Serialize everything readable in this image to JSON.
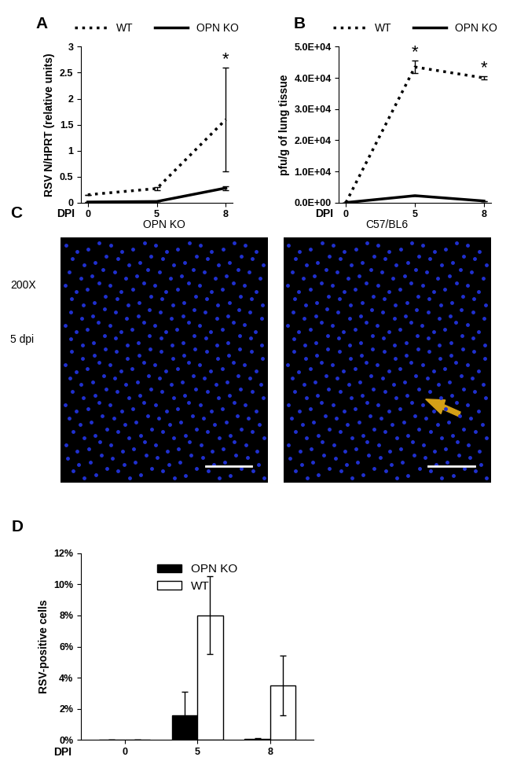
{
  "chart_data": [
    {
      "type": "line",
      "title": "A",
      "x_label": "DPI",
      "y_label": "RSV N/HPRT (relative units)",
      "categories": [
        "0",
        "5",
        "8"
      ],
      "series": [
        {
          "name": "WT",
          "color": "#000000",
          "line_style": "dotted",
          "values": [
            0.15,
            0.27,
            1.6
          ],
          "errors": [
            0.0,
            0.03,
            1.0
          ]
        },
        {
          "name": "OPN KO",
          "color": "#000000",
          "line_style": "solid",
          "values": [
            0.01,
            0.02,
            0.28
          ],
          "errors": [
            0.0,
            0.0,
            0.04
          ]
        }
      ],
      "ylim": [
        0,
        3
      ],
      "yticks": [
        0,
        0.5,
        1,
        1.5,
        2,
        2.5,
        3
      ],
      "legend": "top",
      "annotations": [
        {
          "text": "*",
          "series": "WT",
          "category": "8"
        }
      ]
    },
    {
      "type": "line",
      "title": "B",
      "x_label": "DPI",
      "y_label": "pfu/g of lung tissue",
      "categories": [
        "0",
        "5",
        "8"
      ],
      "series": [
        {
          "name": "WT",
          "color": "#000000",
          "line_style": "dotted",
          "values": [
            0,
            43500,
            40000
          ],
          "errors": [
            0,
            2000,
            500
          ]
        },
        {
          "name": "OPN KO",
          "color": "#000000",
          "line_style": "solid",
          "values": [
            0,
            2200,
            500
          ],
          "errors": [
            0,
            0,
            0
          ]
        }
      ],
      "ylim": [
        0,
        50000
      ],
      "yticks": [
        {
          "value": 0,
          "label": "0.0E+00"
        },
        {
          "value": 10000,
          "label": "1.0E+04"
        },
        {
          "value": 20000,
          "label": "2.0E+04"
        },
        {
          "value": 30000,
          "label": "3.0E+04"
        },
        {
          "value": 40000,
          "label": "4.0E+04"
        },
        {
          "value": 50000,
          "label": "5.0E+04"
        }
      ],
      "legend": "top",
      "annotations": [
        {
          "text": "*",
          "series": "WT",
          "category": "5"
        },
        {
          "text": "*",
          "series": "WT",
          "category": "8"
        }
      ]
    },
    {
      "type": "bar",
      "title": "D",
      "x_label": "DPI",
      "y_label": "RSV-positive cells",
      "categories": [
        "0",
        "5",
        "8"
      ],
      "series": [
        {
          "name": "OPN KO",
          "color": "#000000",
          "values": [
            0,
            1.6,
            0.05
          ],
          "errors": [
            0,
            1.5,
            0.05
          ]
        },
        {
          "name": "WT",
          "color": "#ffffff",
          "values": [
            0,
            8.0,
            3.5
          ],
          "errors": [
            0,
            2.5,
            1.9
          ]
        }
      ],
      "ylim": [
        0,
        12
      ],
      "yticks": [
        {
          "value": 0,
          "label": "0%"
        },
        {
          "value": 2,
          "label": "2%"
        },
        {
          "value": 4,
          "label": "4%"
        },
        {
          "value": 6,
          "label": "6%"
        },
        {
          "value": 8,
          "label": "8%"
        },
        {
          "value": 10,
          "label": "10%"
        },
        {
          "value": 12,
          "label": "12%"
        }
      ],
      "legend": "upper center"
    }
  ],
  "panel_c": {
    "title": "C",
    "magnification": "200X",
    "time": "5 dpi",
    "images": [
      {
        "label": "OPN KO"
      },
      {
        "label": "C57/BL6"
      }
    ]
  }
}
